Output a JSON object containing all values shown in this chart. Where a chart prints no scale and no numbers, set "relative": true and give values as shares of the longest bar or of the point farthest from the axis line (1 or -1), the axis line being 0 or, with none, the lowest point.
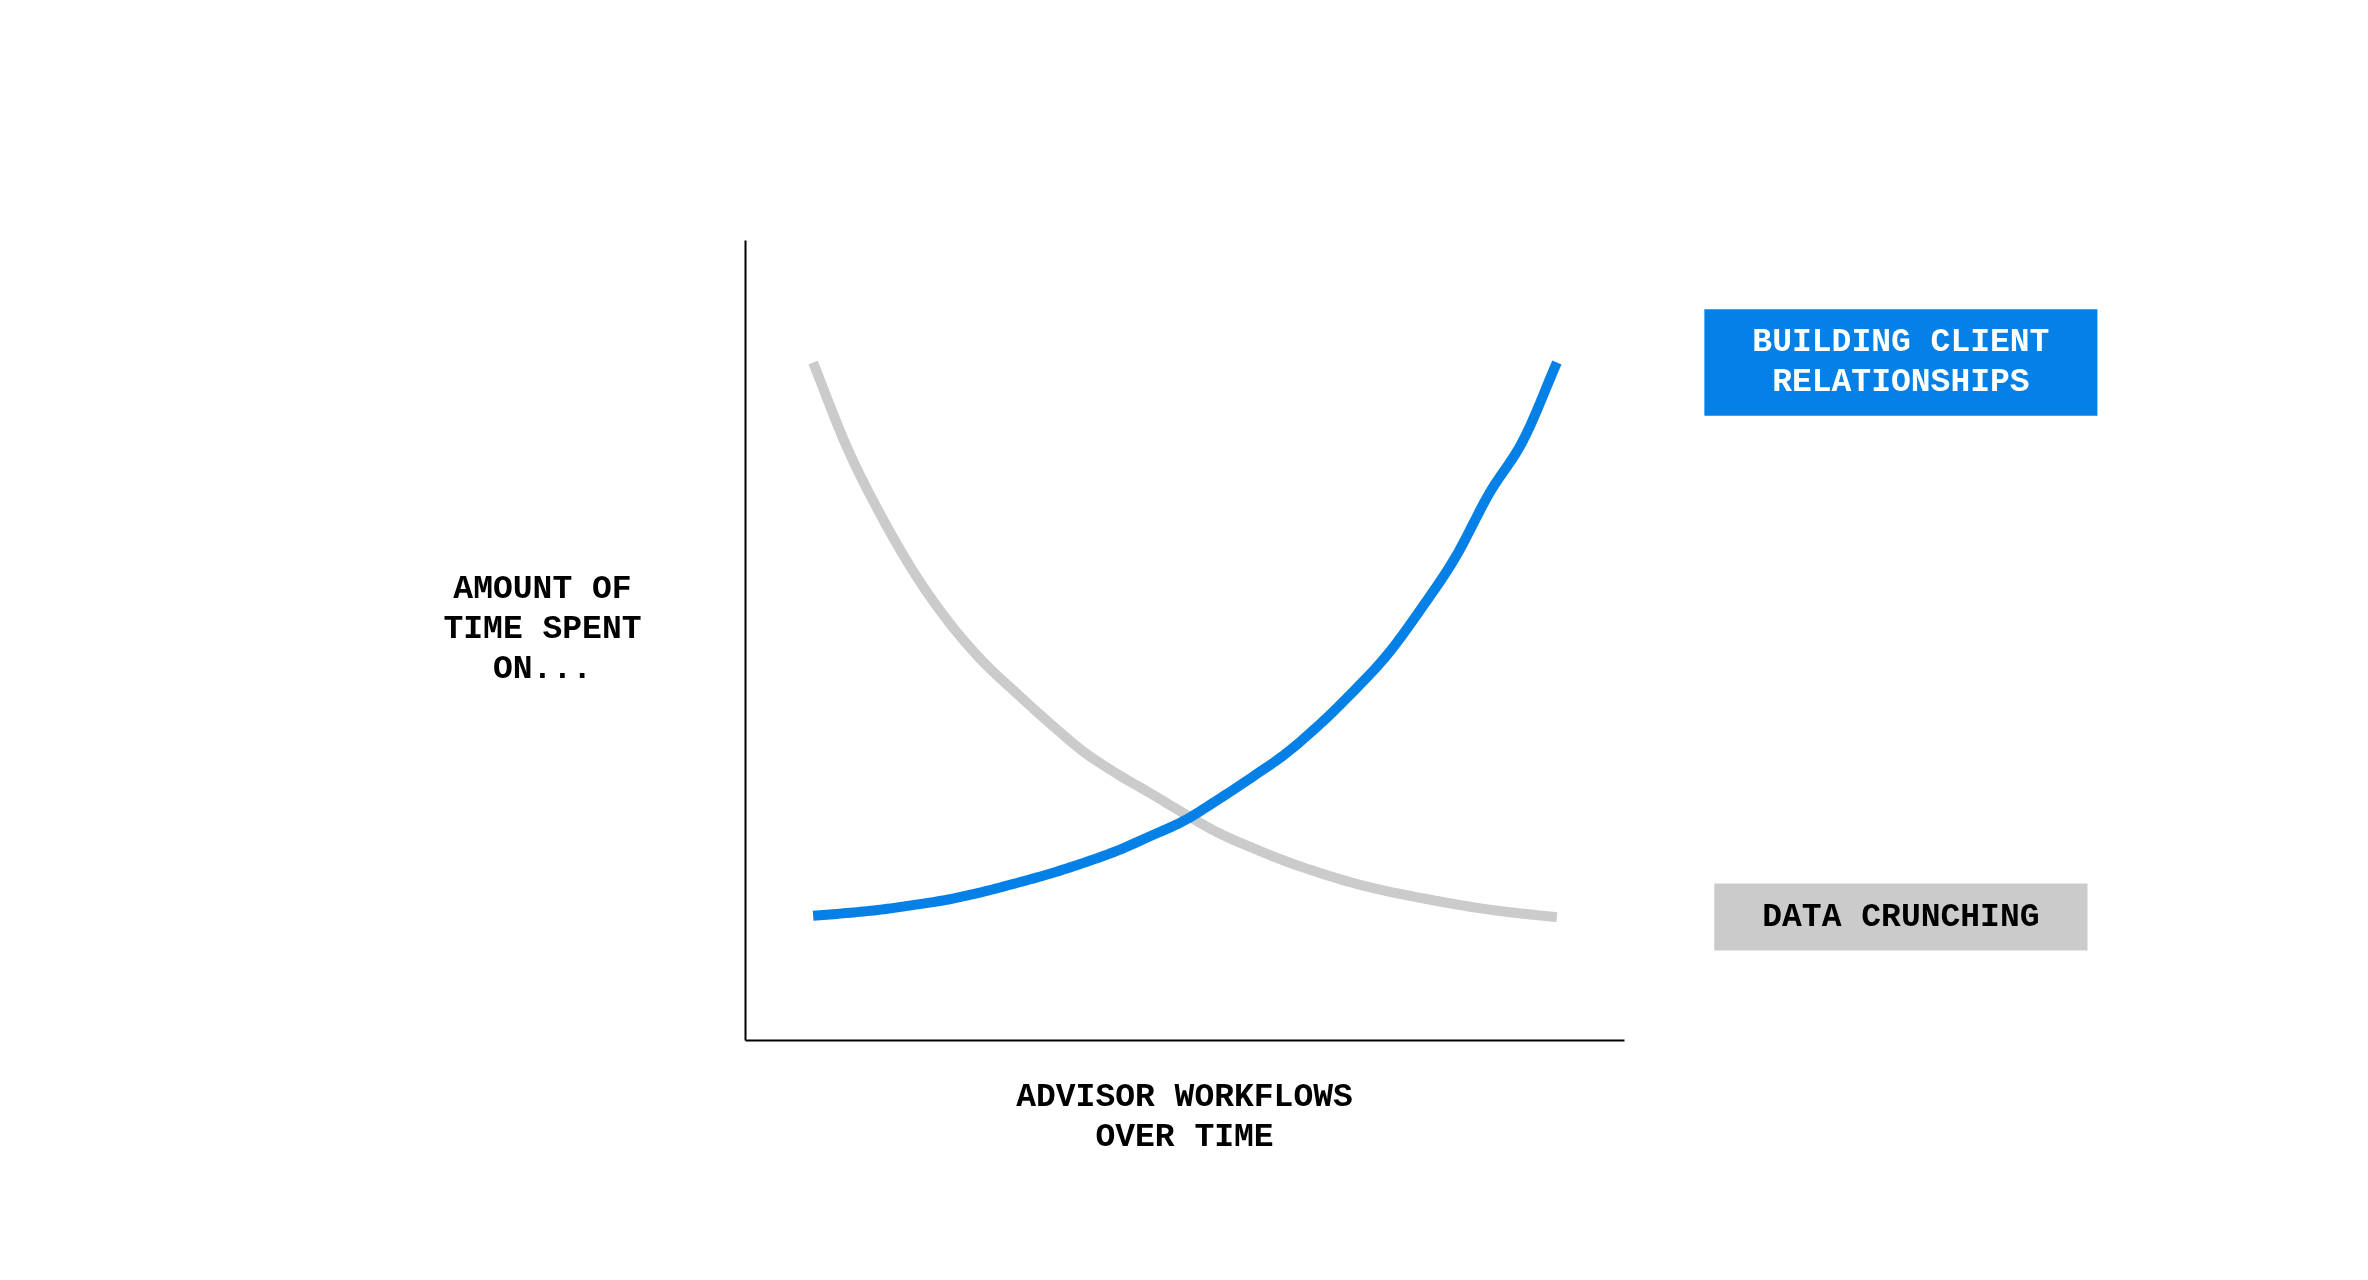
{
  "chart_data": {
    "type": "line",
    "relative": true,
    "xlabel": "ADVISOR WORKFLOWS OVER TIME",
    "ylabel": "AMOUNT OF TIME SPENT ON...",
    "categories": [
      null,
      null,
      null,
      null,
      null,
      null,
      null,
      null,
      null,
      null,
      null,
      null,
      null,
      null,
      null,
      null,
      null,
      null,
      null,
      null,
      null,
      null,
      null
    ],
    "series": [
      {
        "name": "DATA CRUNCHING",
        "color": "#cbcbcb",
        "values": [
          1.0,
          0.875,
          0.775,
          0.689,
          0.618,
          0.56,
          0.513,
          0.468,
          0.426,
          0.393,
          0.364,
          0.334,
          0.306,
          0.284,
          0.264,
          0.247,
          0.232,
          0.22,
          0.21,
          0.201,
          0.193,
          0.187,
          0.182
        ]
      },
      {
        "name": "BUILDING CLIENT RELATIONSHIPS",
        "color": "#0480e6",
        "values": [
          0.184,
          0.188,
          0.193,
          0.2,
          0.208,
          0.219,
          0.232,
          0.246,
          0.262,
          0.28,
          0.302,
          0.325,
          0.356,
          0.389,
          0.424,
          0.467,
          0.516,
          0.57,
          0.638,
          0.713,
          0.807,
          0.885,
          1.0
        ]
      }
    ],
    "line_style": "solid"
  }
}
